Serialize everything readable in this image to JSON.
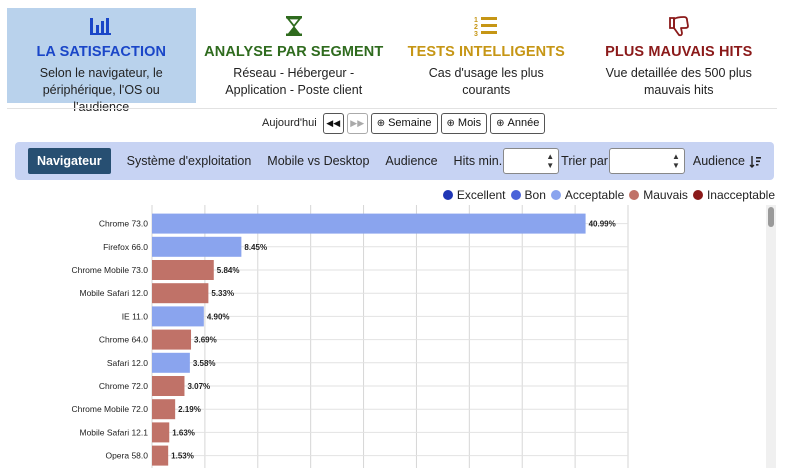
{
  "cards": [
    {
      "title": "LA SATISFACTION",
      "desc": "Selon le navigateur, le périphérique, l'OS ou l'audience",
      "icon": "bar-chart-icon",
      "color": "#1a46c8",
      "active": true
    },
    {
      "title": "ANALYSE PAR SEGMENT",
      "desc": "Réseau - Hébergeur - Application - Poste client",
      "icon": "hourglass-icon",
      "color": "#2f6b1e",
      "active": false
    },
    {
      "title": "TESTS INTELLIGENTS",
      "desc": "Cas d'usage les plus courants",
      "icon": "numbered-list-icon",
      "color": "#c69615",
      "active": false
    },
    {
      "title": "PLUS MAUVAIS HITS",
      "desc": "Vue detaillée des 500 plus mauvais hits",
      "icon": "thumbs-down-icon",
      "color": "#8b1a1a",
      "active": false
    }
  ],
  "period": {
    "label": "Aujourd'hui",
    "prev_icon": "double-chevron-left-icon",
    "next_icon": "double-chevron-right-icon",
    "buttons": [
      "Semaine",
      "Mois",
      "Année"
    ]
  },
  "filterbar": {
    "tabs": [
      "Navigateur",
      "Système d'exploitation",
      "Mobile vs Desktop",
      "Audience"
    ],
    "active_tab": "Navigateur",
    "hits_label": "Hits min.",
    "sort_label": "Trier par",
    "audience_label": "Audience"
  },
  "legend": [
    {
      "label": "Excellent",
      "color": "#1f36b5"
    },
    {
      "label": "Bon",
      "color": "#4a63d9"
    },
    {
      "label": "Acceptable",
      "color": "#8aa4ee"
    },
    {
      "label": "Mauvais",
      "color": "#c07268"
    },
    {
      "label": "Inacceptable",
      "color": "#8b1a1a"
    }
  ],
  "chart_data": {
    "type": "bar",
    "orientation": "horizontal",
    "categories": [
      "Chrome 73.0",
      "Firefox 66.0",
      "Chrome Mobile 73.0",
      "Mobile Safari 12.0",
      "IE 11.0",
      "Chrome 64.0",
      "Safari 12.0",
      "Chrome 72.0",
      "Chrome Mobile 72.0",
      "Mobile Safari 12.1",
      "Opera 58.0"
    ],
    "values": [
      40.99,
      8.45,
      5.84,
      5.33,
      4.9,
      3.69,
      3.58,
      3.07,
      2.19,
      1.63,
      1.53
    ],
    "labels": [
      "40.99%",
      "8.45%",
      "5.84%",
      "5.33%",
      "4.90%",
      "3.69%",
      "3.58%",
      "3.07%",
      "2.19%",
      "1.63%",
      "1.53%"
    ],
    "status": [
      "Acceptable",
      "Acceptable",
      "Mauvais",
      "Mauvais",
      "Acceptable",
      "Mauvais",
      "Acceptable",
      "Mauvais",
      "Mauvais",
      "Mauvais",
      "Mauvais"
    ],
    "xlim": [
      0,
      45
    ],
    "grid": true,
    "legend_position": "top-right"
  }
}
